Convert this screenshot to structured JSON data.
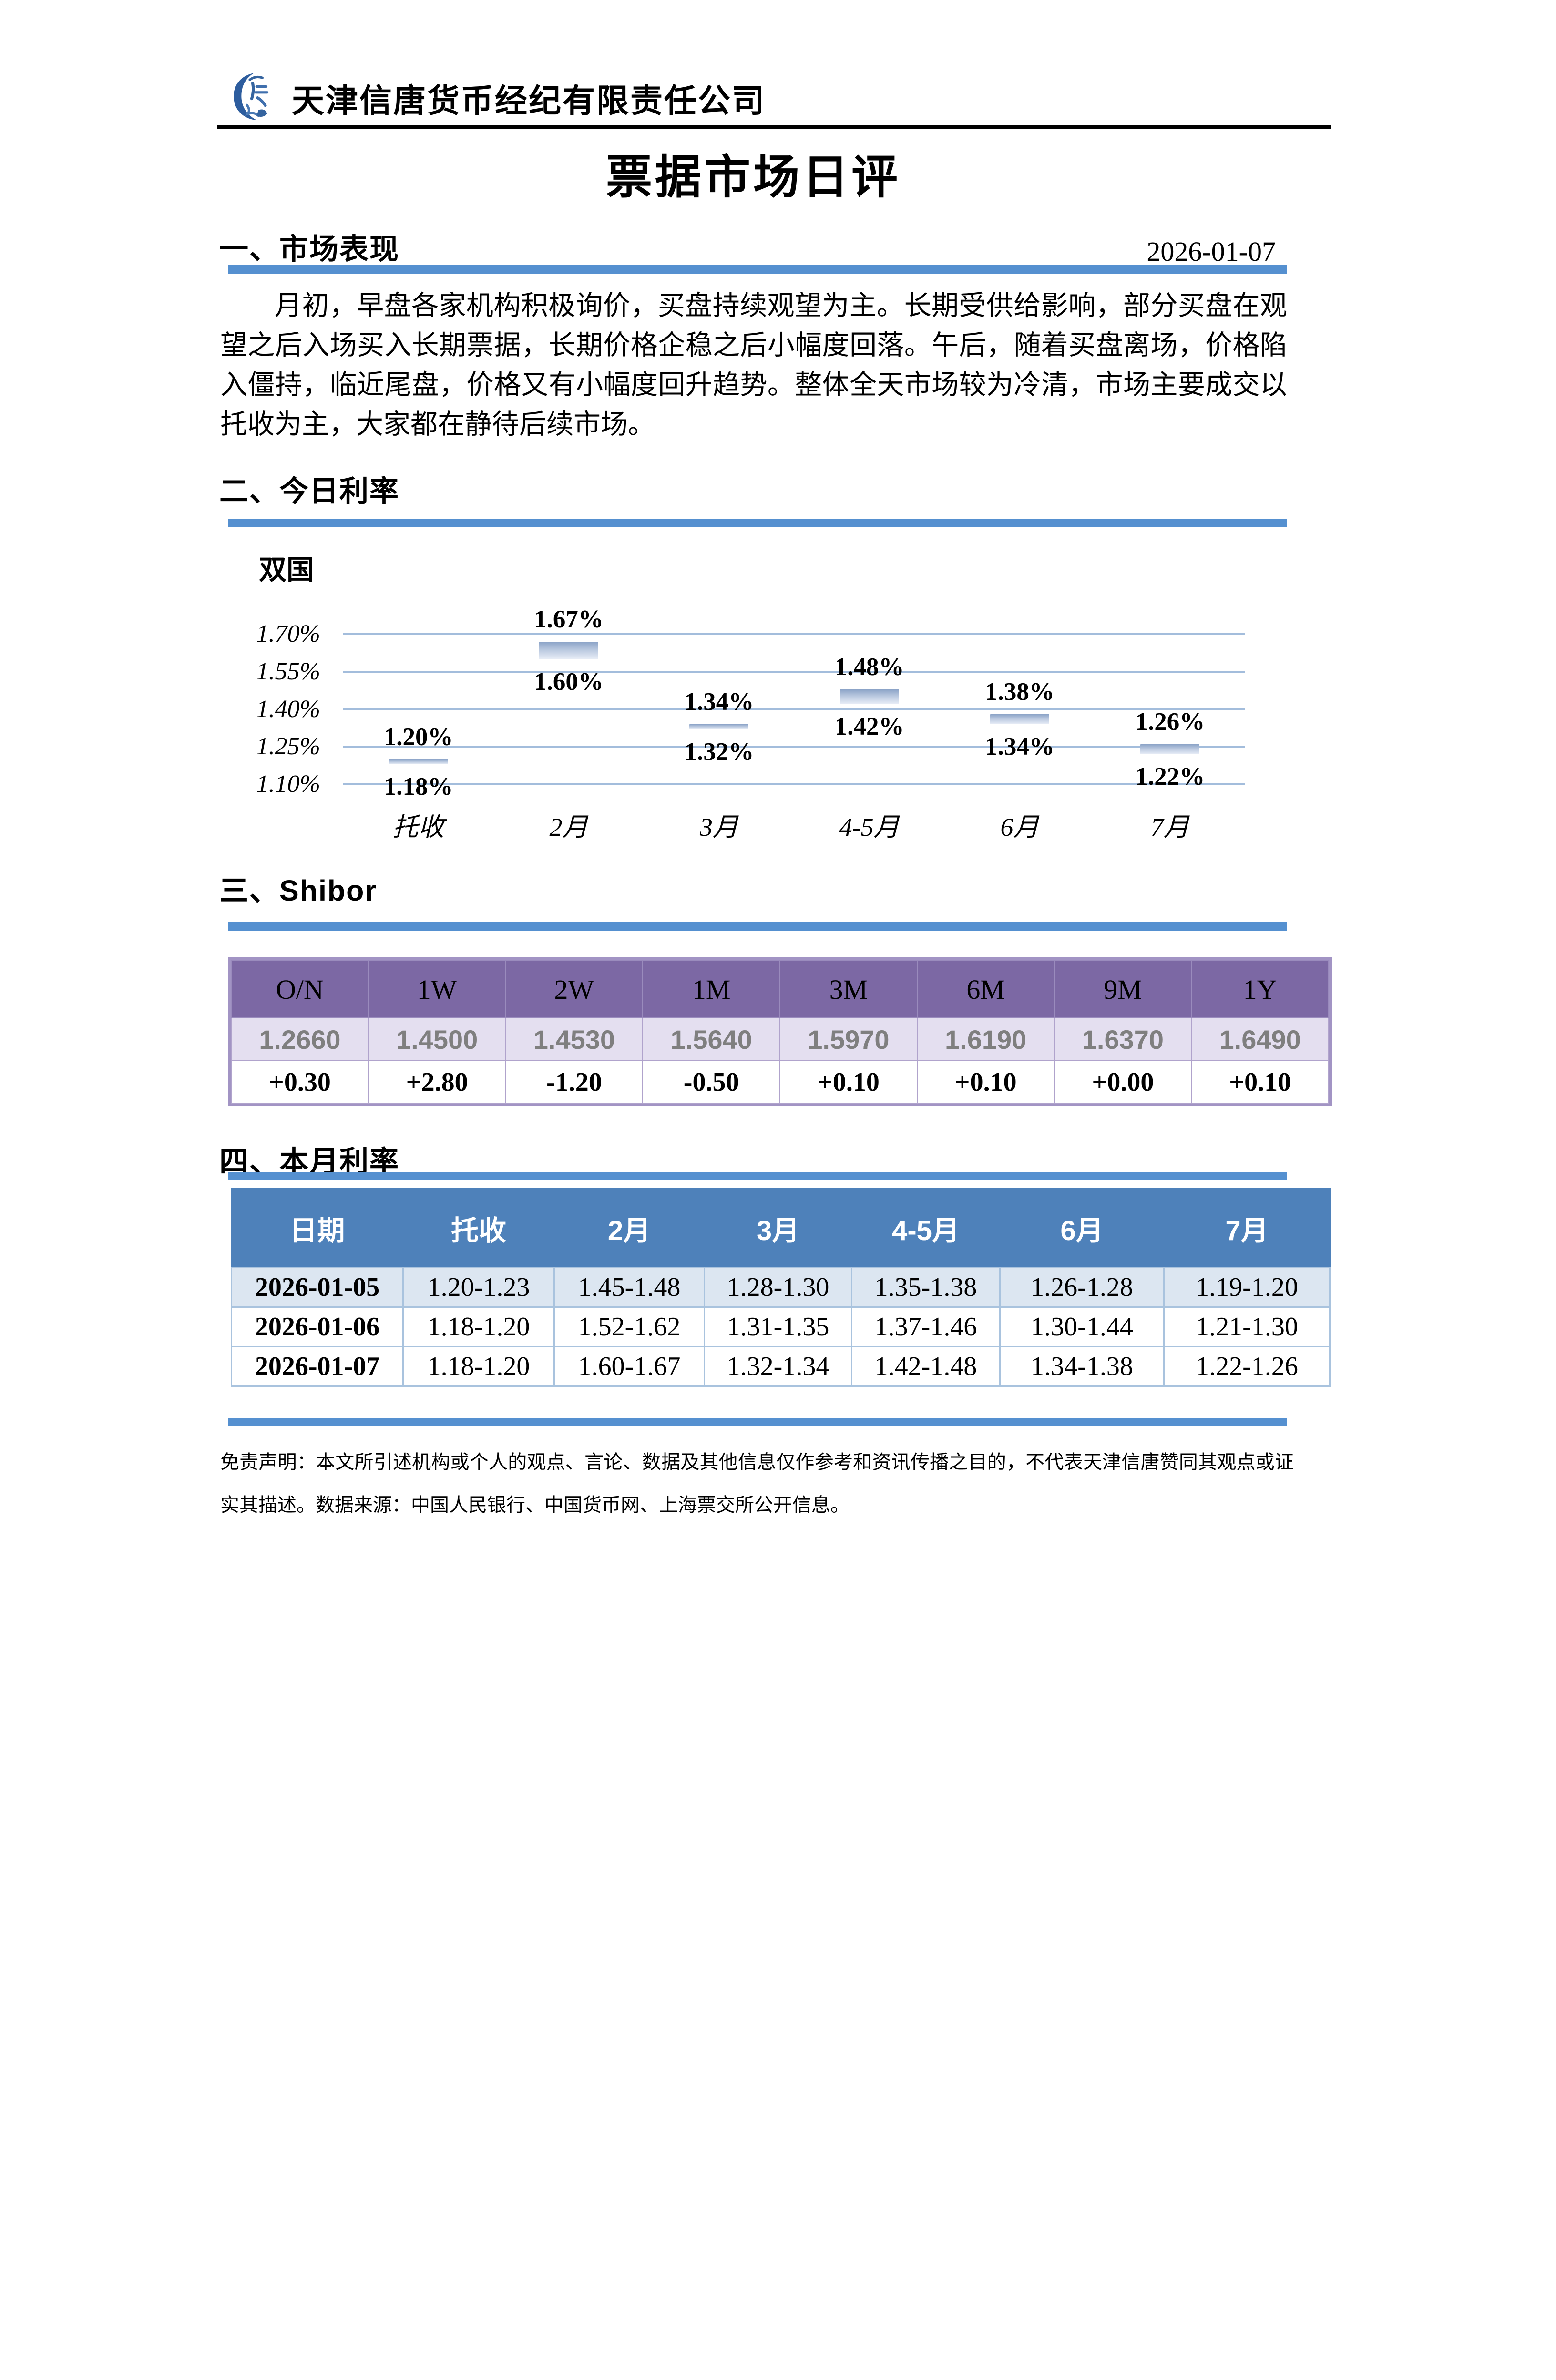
{
  "header": {
    "company_name": "天津信唐货币经纪有限责任公司",
    "doc_title": "票据市场日评"
  },
  "section1": {
    "heading": "一、市场表现",
    "date": "2026-01-07",
    "paragraph": "月初，早盘各家机构积极询价，买盘持续观望为主。长期受供给影响，部分买盘在观望之后入场买入长期票据，长期价格企稳之后小幅度回落。午后，随着买盘离场，价格陷入僵持，临近尾盘，价格又有小幅度回升趋势。整体全天市场较为冷清，市场主要成交以托收为主，大家都在静待后续市场。"
  },
  "section2": {
    "heading": "二、今日利率"
  },
  "chart_data": {
    "type": "bar",
    "subtype": "floating-range-bar",
    "title": "双国",
    "categories": [
      "托收",
      "2月",
      "3月",
      "4-5月",
      "6月",
      "7月"
    ],
    "series": [
      {
        "name": "low",
        "values": [
          1.18,
          1.6,
          1.32,
          1.42,
          1.34,
          1.22
        ]
      },
      {
        "name": "high",
        "values": [
          1.2,
          1.67,
          1.34,
          1.48,
          1.38,
          1.26
        ]
      }
    ],
    "labels_high": [
      "1.20%",
      "1.67%",
      "1.34%",
      "1.48%",
      "1.38%",
      "1.26%"
    ],
    "labels_low": [
      "1.18%",
      "1.60%",
      "1.32%",
      "1.42%",
      "1.34%",
      "1.22%"
    ],
    "y_ticks": [
      "1.70%",
      "1.55%",
      "1.40%",
      "1.25%",
      "1.10%"
    ],
    "ylim": [
      1.1,
      1.7
    ],
    "grid": "horizontal",
    "legend": "none"
  },
  "section3": {
    "heading_num": "三、",
    "heading_text": "Shibor"
  },
  "shibor": {
    "columns": [
      "O/N",
      "1W",
      "2W",
      "1M",
      "3M",
      "6M",
      "9M",
      "1Y"
    ],
    "values": [
      "1.2660",
      "1.4500",
      "1.4530",
      "1.5640",
      "1.5970",
      "1.6190",
      "1.6370",
      "1.6490"
    ],
    "changes": [
      "+0.30",
      "+2.80",
      "-1.20",
      "-0.50",
      "+0.10",
      "+0.10",
      "+0.00",
      "+0.10"
    ]
  },
  "section4": {
    "heading": "四、本月利率"
  },
  "monthly": {
    "headers": [
      "日期",
      "托收",
      "2月",
      "3月",
      "4-5月",
      "6月",
      "7月"
    ],
    "rows": [
      {
        "date": "2026-01-05",
        "values": [
          "1.20-1.23",
          "1.45-1.48",
          "1.28-1.30",
          "1.35-1.38",
          "1.26-1.28",
          "1.19-1.20"
        ],
        "highlight": true
      },
      {
        "date": "2026-01-06",
        "values": [
          "1.18-1.20",
          "1.52-1.62",
          "1.31-1.35",
          "1.37-1.46",
          "1.30-1.44",
          "1.21-1.30"
        ],
        "highlight": false
      },
      {
        "date": "2026-01-07",
        "values": [
          "1.18-1.20",
          "1.60-1.67",
          "1.32-1.34",
          "1.42-1.48",
          "1.34-1.38",
          "1.22-1.26"
        ],
        "highlight": false
      }
    ]
  },
  "footer": {
    "disclaimer": "免责声明：本文所引述机构或个人的观点、言论、数据及其他信息仅作参考和资讯传播之目的，不代表天津信唐赞同其观点或证实其描述。数据来源：中国人民银行、中国货币网、上海票交所公开信息。"
  },
  "colors": {
    "accent_blue": "#5590d0",
    "table_header_blue": "#4e81ba",
    "row_light_blue": "#dce6f1",
    "table_border_blue": "#a9c3de",
    "purple_header": "#7c68a4",
    "purple_light": "#e4dff0",
    "purple_border": "#a294c4",
    "value_gray": "#7f7f7f",
    "gridline": "#a3bddc",
    "bar_gradient_top": "#8ba3c7",
    "bar_gradient_bottom": "#e9eef7"
  }
}
